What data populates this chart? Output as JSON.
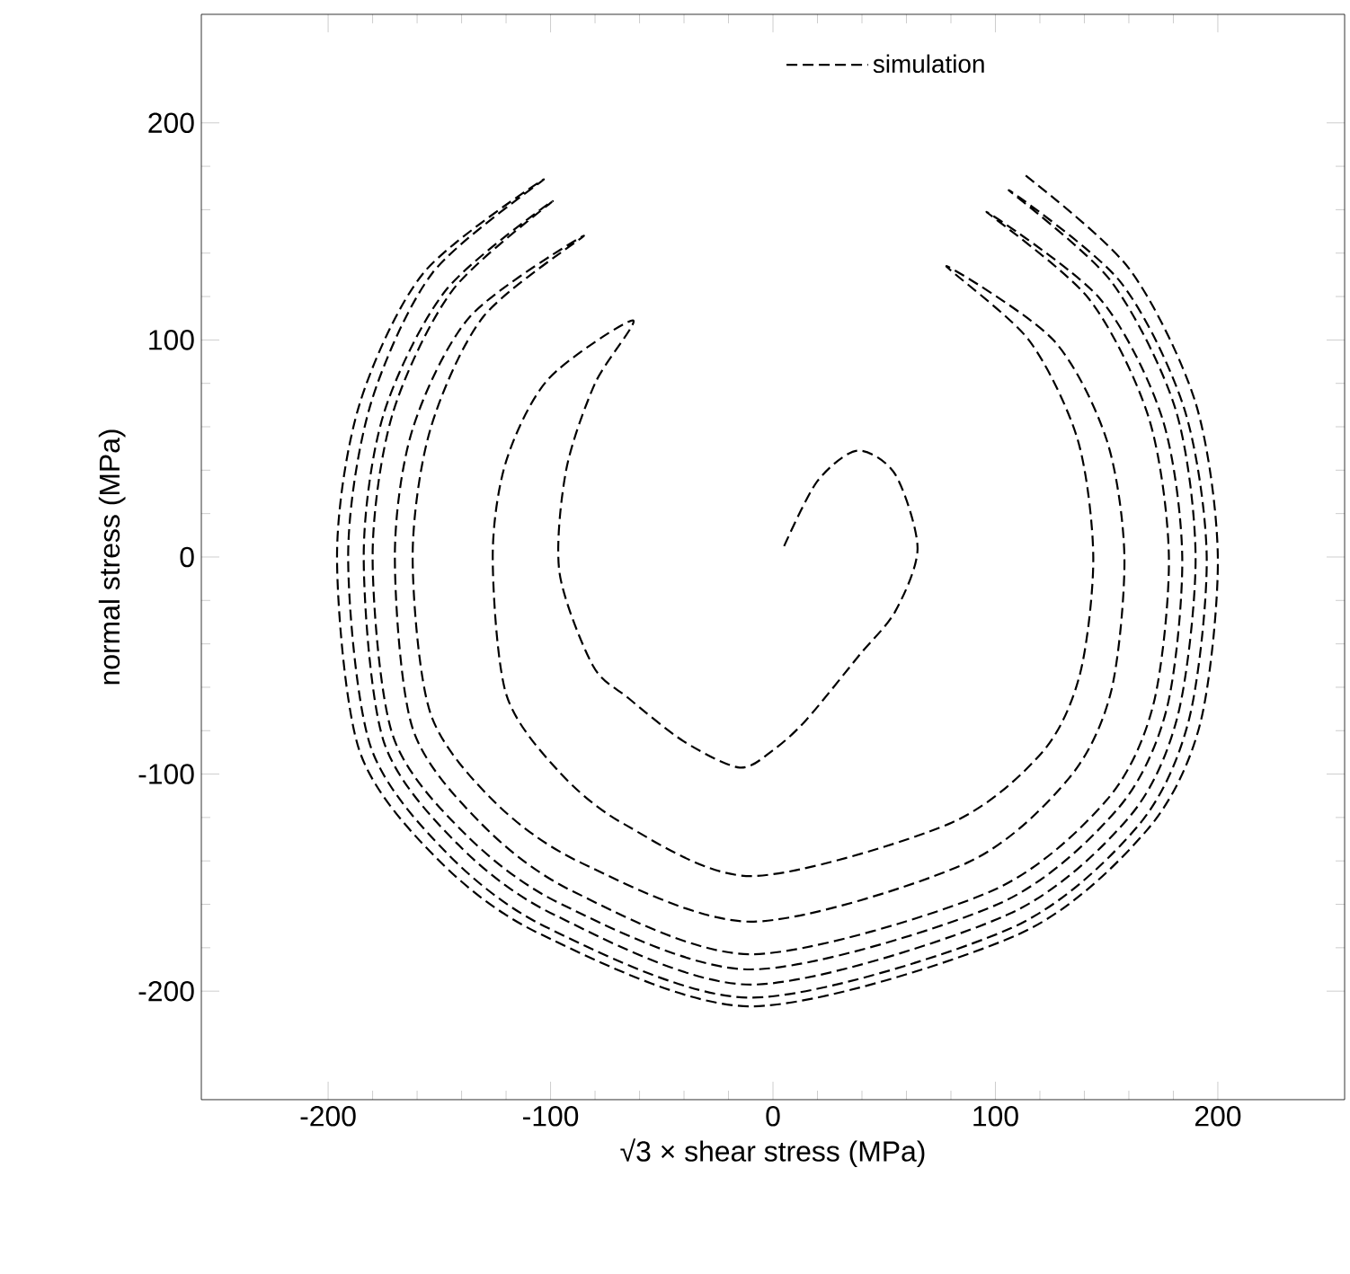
{
  "chart_data": {
    "type": "line",
    "xlabel": "√3 × shear stress (MPa)",
    "ylabel": "normal stress (MPa)",
    "xlim": [
      -257,
      257
    ],
    "ylim": [
      -250,
      250
    ],
    "xticks": [
      -200,
      -100,
      0,
      100,
      200
    ],
    "yticks": [
      -200,
      -100,
      0,
      100,
      200
    ],
    "legend": "top",
    "grid": false,
    "marker": "none",
    "line_style": "dashed",
    "series": [
      {
        "name": "simulation",
        "color": "#000000",
        "x": [
          5,
          20,
          38,
          55,
          65,
          55,
          39,
          15,
          0,
          -15,
          -40,
          -65,
          -81,
          -96,
          -93,
          -80,
          -63,
          -101,
          -120,
          -126,
          -120,
          -97,
          -67,
          -10,
          79,
          121,
          138,
          144,
          137,
          115,
          78,
          126,
          150,
          158,
          152,
          133,
          87,
          -10,
          -86,
          -125,
          -154,
          -162,
          -154,
          -130,
          -85,
          -136,
          -162,
          -170,
          -162,
          -131,
          -90,
          -10,
          98,
          150,
          171,
          178,
          169,
          142,
          96,
          147,
          175,
          184,
          177,
          155,
          101,
          -10,
          -95,
          -139,
          -171,
          -180,
          -171,
          -144,
          -99,
          -147,
          -175,
          -184,
          -175,
          -142,
          -98,
          -10,
          105,
          160,
          182,
          190,
          181,
          152,
          106,
          156,
          185,
          195,
          187,
          164,
          107,
          -10,
          -101,
          -147,
          -181,
          -191,
          -181,
          -153,
          -103,
          -157,
          -186,
          -196,
          -186,
          -151,
          -104,
          -10,
          110,
          168,
          192,
          200,
          190,
          160,
          112
        ],
        "values": [
          5,
          35,
          49,
          38,
          4,
          -25,
          -45,
          -75,
          -89,
          -97,
          -85,
          -65,
          -50,
          -7,
          40,
          80,
          109,
          82,
          44,
          0,
          -63,
          -98,
          -123,
          -147,
          -123,
          -90,
          -54,
          0,
          54,
          100,
          134,
          100,
          54,
          0,
          -62,
          -102,
          -141,
          -168,
          -141,
          -113,
          -72,
          0,
          59,
          111,
          148,
          111,
          59,
          0,
          -79,
          -123,
          -154,
          -183,
          -154,
          -112,
          -68,
          0,
          64,
          119,
          159,
          119,
          64,
          0,
          -70,
          -116,
          -160,
          -190,
          -160,
          -127,
          -82,
          0,
          66,
          123,
          164,
          123,
          66,
          0,
          -85,
          -132,
          -165,
          -197,
          -165,
          -120,
          -73,
          0,
          68,
          127,
          169,
          127,
          68,
          0,
          -75,
          -124,
          -171,
          -203,
          -171,
          -136,
          -87,
          0,
          70,
          131,
          174,
          131,
          70,
          0,
          -89,
          -139,
          -174,
          -207,
          -174,
          -126,
          -77,
          0,
          71,
          133,
          177
        ]
      }
    ]
  }
}
